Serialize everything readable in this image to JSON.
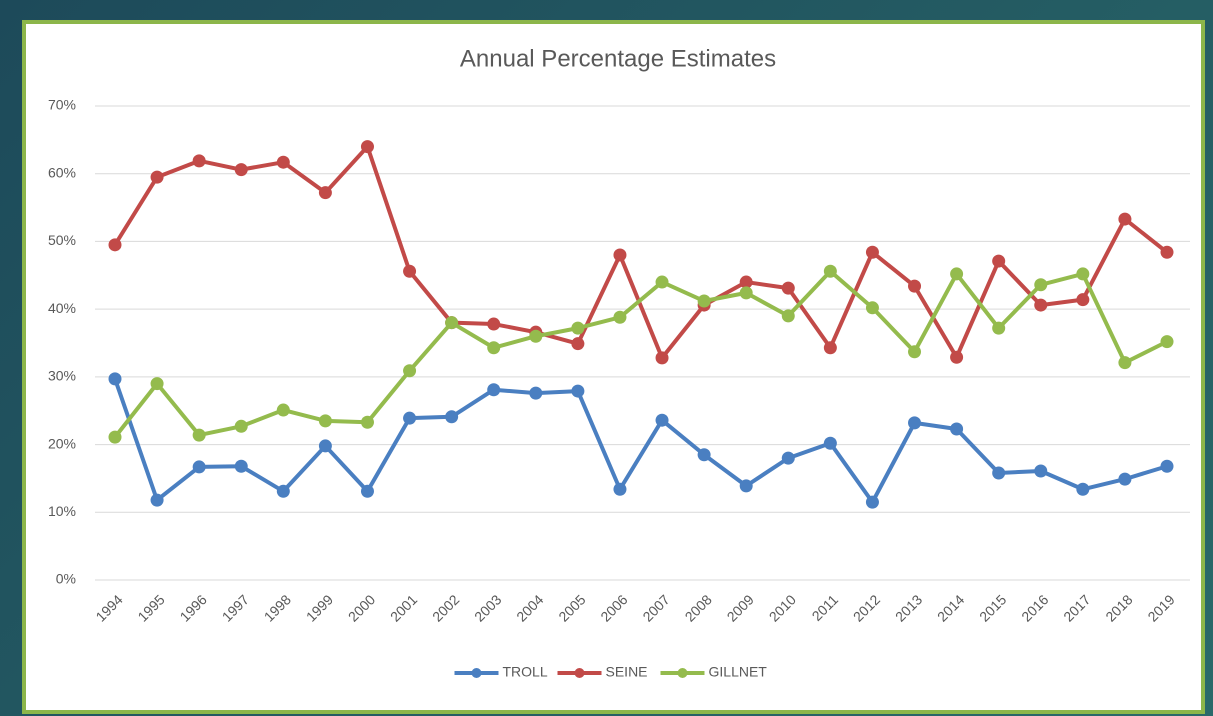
{
  "chart_data": {
    "type": "line",
    "title": "Annual Percentage Estimates",
    "categories": [
      "1994",
      "1995",
      "1996",
      "1997",
      "1998",
      "1999",
      "2000",
      "2001",
      "2002",
      "2003",
      "2004",
      "2005",
      "2006",
      "2007",
      "2008",
      "2009",
      "2010",
      "2011",
      "2012",
      "2013",
      "2014",
      "2015",
      "2016",
      "2017",
      "2018",
      "2019"
    ],
    "series": [
      {
        "name": "TROLL",
        "color": "#4a7fc1",
        "values": [
          29.7,
          11.8,
          16.7,
          16.8,
          13.1,
          19.8,
          13.1,
          23.9,
          24.1,
          28.1,
          27.6,
          27.9,
          13.4,
          23.6,
          18.5,
          13.9,
          18.0,
          20.2,
          11.5,
          23.2,
          22.3,
          15.8,
          16.1,
          13.4,
          14.9,
          16.8
        ]
      },
      {
        "name": "SEINE",
        "color": "#c24a48",
        "values": [
          49.5,
          59.5,
          61.9,
          60.6,
          61.7,
          57.2,
          64.0,
          45.6,
          38.0,
          37.8,
          36.6,
          34.9,
          48.0,
          32.8,
          40.6,
          44.0,
          43.1,
          34.3,
          48.4,
          43.4,
          32.9,
          47.1,
          40.6,
          41.4,
          53.3,
          48.4
        ]
      },
      {
        "name": "GILLNET",
        "color": "#94bb4d",
        "values": [
          21.1,
          29.0,
          21.4,
          22.7,
          25.1,
          23.5,
          23.3,
          30.9,
          38.0,
          34.3,
          36.0,
          37.2,
          38.8,
          44.0,
          41.2,
          42.4,
          39.0,
          45.6,
          40.2,
          33.7,
          45.2,
          37.2,
          43.6,
          45.2,
          32.1,
          35.2
        ]
      }
    ],
    "ylim": [
      0,
      70
    ],
    "yticks": [
      {
        "value": 0,
        "label": "0%"
      },
      {
        "value": 10,
        "label": "10%"
      },
      {
        "value": 20,
        "label": "20%"
      },
      {
        "value": 30,
        "label": "30%"
      },
      {
        "value": 40,
        "label": "40%"
      },
      {
        "value": 50,
        "label": "50%"
      },
      {
        "value": 60,
        "label": "60%"
      },
      {
        "value": 70,
        "label": "70%"
      }
    ],
    "grid": true,
    "legend": "bottom"
  }
}
